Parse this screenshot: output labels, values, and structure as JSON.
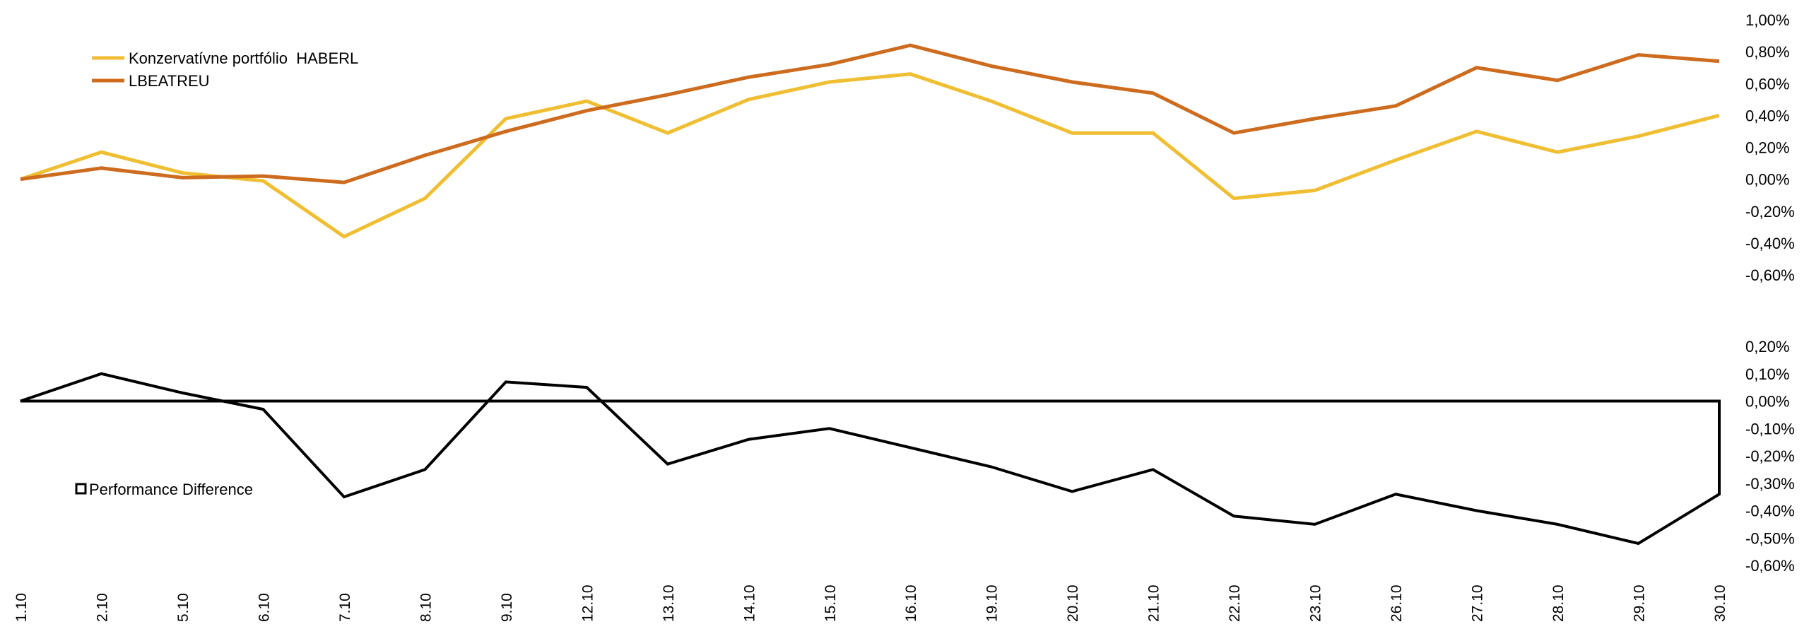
{
  "chart_data": [
    {
      "type": "line",
      "title": "",
      "x": [
        "1.10",
        "2.10",
        "5.10",
        "6.10",
        "7.10",
        "8.10",
        "9.10",
        "12.10",
        "13.10",
        "14.10",
        "15.10",
        "16.10",
        "19.10",
        "20.10",
        "21.10",
        "22.10",
        "23.10",
        "26.10",
        "27.10",
        "28.10",
        "29.10",
        "30.10"
      ],
      "series": [
        {
          "name": "Konzervatívne portfólio  HABERL",
          "color": "#F0BE32",
          "values": [
            0,
            0.17,
            0.04,
            -0.01,
            -0.36,
            -0.12,
            0.38,
            0.49,
            0.29,
            0.5,
            0.61,
            0.66,
            0.49,
            0.29,
            0.29,
            -0.12,
            -0.07,
            0.12,
            0.3,
            0.17,
            0.27,
            0.4
          ]
        },
        {
          "name": "LBEATREU",
          "color": "#CD6B1E",
          "values": [
            0,
            0.07,
            0.01,
            0.02,
            -0.02,
            0.15,
            0.3,
            0.43,
            0.53,
            0.64,
            0.72,
            0.84,
            0.71,
            0.61,
            0.54,
            0.29,
            0.38,
            0.46,
            0.7,
            0.62,
            0.78,
            0.74
          ]
        }
      ],
      "ylim": [
        -0.6,
        1.0
      ],
      "yticks": [
        "1,00%",
        "0,80%",
        "0,60%",
        "0,40%",
        "0,20%",
        "0,00%",
        "-0,20%",
        "-0,40%",
        "-0,60%"
      ],
      "legend": "top-left",
      "grid": false
    },
    {
      "type": "area",
      "title": "",
      "series": [
        {
          "name": "Performance Difference",
          "color": "#000000",
          "values": [
            0,
            0.1,
            0.03,
            -0.03,
            -0.35,
            -0.25,
            0.07,
            0.05,
            -0.23,
            -0.14,
            -0.1,
            -0.17,
            -0.24,
            -0.33,
            -0.25,
            -0.42,
            -0.45,
            -0.34,
            -0.4,
            -0.45,
            -0.52,
            -0.34
          ]
        }
      ],
      "ylim": [
        -0.6,
        0.2
      ],
      "yticks": [
        "0,20%",
        "0,10%",
        "0,00%",
        "-0,10%",
        "-0,20%",
        "-0,30%",
        "-0,40%",
        "-0,50%",
        "-0,60%"
      ],
      "legend": "left",
      "grid": false
    }
  ]
}
